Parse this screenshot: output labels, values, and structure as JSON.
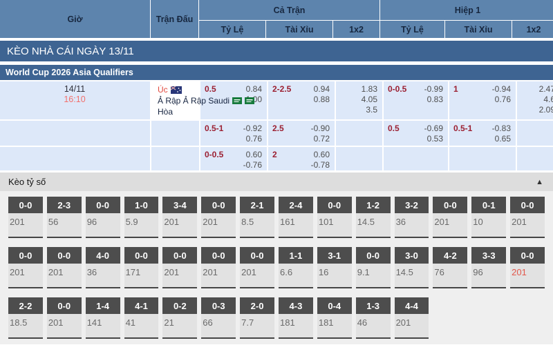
{
  "table_header": {
    "col_time": "Giờ",
    "col_match": "Trận Đấu",
    "group_full": "Cả Trận",
    "group_half": "Hiệp 1",
    "sub_handicap_ft": "Tỷ Lệ",
    "sub_overunder_ft": "Tài Xỉu",
    "sub_1x2_ft": "1x2",
    "sub_handicap_h1": "Tỷ Lệ",
    "sub_overunder_h1": "Tài Xỉu",
    "sub_1x2_h1": "1x2"
  },
  "section_bars": {
    "daily_title": "KÈO NHÀ CÁI NGÀY 13/11",
    "league_title": "World Cup 2026 Asia Qualifiers"
  },
  "match": {
    "date": "14/11",
    "time": "16:10",
    "home": "Úc",
    "away": "Ả Rập Ả Rập Saudi",
    "draw_label": "Hòa",
    "rows": [
      {
        "ft_hc": {
          "line": "0.5",
          "odds": [
            "0.84",
            "1.00"
          ]
        },
        "ft_ou": {
          "line": "2-2.5",
          "odds": [
            "0.94",
            "0.88"
          ]
        },
        "ft_1x2": [
          "1.83",
          "4.05",
          "3.5"
        ],
        "h1_hc": {
          "line": "0-0.5",
          "odds": [
            "-0.99",
            "0.83"
          ]
        },
        "h1_ou": {
          "line": "1",
          "odds": [
            "-0.94",
            "0.76"
          ]
        },
        "h1_1x2": [
          "2.47",
          "4.6",
          "2.09"
        ]
      },
      {
        "ft_hc": {
          "line": "0.5-1",
          "odds": [
            "-0.92",
            "0.76"
          ]
        },
        "ft_ou": {
          "line": "2.5",
          "odds": [
            "-0.90",
            "0.72"
          ]
        },
        "h1_hc": {
          "line": "0.5",
          "odds": [
            "-0.69",
            "0.53"
          ]
        },
        "h1_ou": {
          "line": "0.5-1",
          "odds": [
            "-0.83",
            "0.65"
          ]
        }
      },
      {
        "ft_hc": {
          "line": "0-0.5",
          "odds": [
            "0.60",
            "-0.76"
          ]
        },
        "ft_ou": {
          "line": "2",
          "odds": [
            "0.60",
            "-0.78"
          ]
        }
      }
    ]
  },
  "score_section": {
    "title": "Kèo tỷ số",
    "collapse_icon": "▲",
    "rows": [
      [
        {
          "score": "0-0",
          "odds": "201"
        },
        {
          "score": "2-3",
          "odds": "56"
        },
        {
          "score": "0-0",
          "odds": "96"
        },
        {
          "score": "1-0",
          "odds": "5.9"
        },
        {
          "score": "3-4",
          "odds": "201"
        },
        {
          "score": "0-0",
          "odds": "201"
        },
        {
          "score": "2-1",
          "odds": "8.5"
        },
        {
          "score": "2-4",
          "odds": "161"
        },
        {
          "score": "0-0",
          "odds": "101"
        },
        {
          "score": "1-2",
          "odds": "14.5"
        },
        {
          "score": "3-2",
          "odds": "36"
        },
        {
          "score": "0-0",
          "odds": "201"
        },
        {
          "score": "0-1",
          "odds": "10"
        },
        {
          "score": "0-0",
          "odds": "201"
        }
      ],
      [
        {
          "score": "0-0",
          "odds": "201"
        },
        {
          "score": "0-0",
          "odds": "201"
        },
        {
          "score": "4-0",
          "odds": "36"
        },
        {
          "score": "0-0",
          "odds": "171"
        },
        {
          "score": "0-0",
          "odds": "201"
        },
        {
          "score": "0-0",
          "odds": "201"
        },
        {
          "score": "0-0",
          "odds": "201"
        },
        {
          "score": "1-1",
          "odds": "6.6"
        },
        {
          "score": "3-1",
          "odds": "16"
        },
        {
          "score": "0-0",
          "odds": "9.1"
        },
        {
          "score": "3-0",
          "odds": "14.5"
        },
        {
          "score": "4-2",
          "odds": "76"
        },
        {
          "score": "3-3",
          "odds": "96"
        },
        {
          "score": "0-0",
          "odds": "201",
          "red": true
        }
      ],
      [
        {
          "score": "2-2",
          "odds": "18.5"
        },
        {
          "score": "0-0",
          "odds": "201"
        },
        {
          "score": "1-4",
          "odds": "141"
        },
        {
          "score": "4-1",
          "odds": "41"
        },
        {
          "score": "0-2",
          "odds": "21"
        },
        {
          "score": "0-3",
          "odds": "66"
        },
        {
          "score": "2-0",
          "odds": "7.7"
        },
        {
          "score": "4-3",
          "odds": "181"
        },
        {
          "score": "0-4",
          "odds": "181"
        },
        {
          "score": "1-3",
          "odds": "46"
        },
        {
          "score": "4-4",
          "odds": "201"
        }
      ]
    ]
  }
}
